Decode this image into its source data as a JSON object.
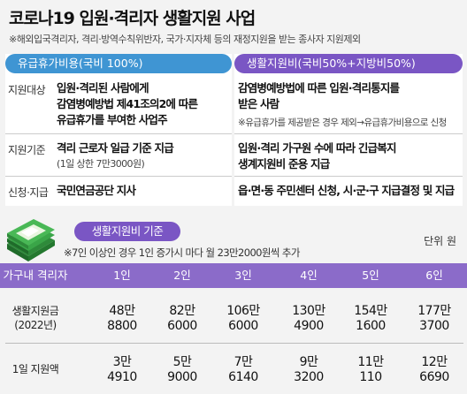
{
  "title": "코로나19 입원·격리자 생활지원 사업",
  "note": "※해외입국격리자, 격리·방역수칙위반자, 국가·지자체 등의 재정지원을 받는 종사자 지원제외",
  "left_panel": {
    "header": "유급휴가비용(국비 100%)",
    "rows": [
      {
        "label": "지원대상",
        "lines": [
          "입원·격리된 사람에게",
          "감염병예방법 제41조의2에 따른",
          "유급휴가를 부여한 사업주"
        ]
      },
      {
        "label": "지원기준",
        "line1": "격리 근로자 일급 기준 지급",
        "line2": "(1일 상한 7만3000원)"
      },
      {
        "label": "신청·지급",
        "line1": "국민연금공단 지사"
      }
    ]
  },
  "right_panel": {
    "header": "생활지원비(국비50%+지방비50%)",
    "row1": {
      "lines": [
        "감염병예방법에 따른 입원·격리통지를",
        "받은 사람"
      ],
      "sub": "※유급휴가를 제공받은 경우 제외→유급휴가비용으로 신청"
    },
    "row2": {
      "lines": [
        "입원·격리 가구원 수에 따라 긴급복지",
        "생계지원비 준용 지급"
      ]
    },
    "row3": {
      "line1": "읍·면·동 주민센터 신청, 시·군·구 지급결정 및 지급"
    }
  },
  "support": {
    "tag": "생활지원비 기준",
    "unit": "단위 원",
    "note": "※7인 이상인 경우 1인 증가시 마다 월 23만2000원씩 추가"
  },
  "table": {
    "row_header": "가구내 격리자",
    "columns": [
      "1인",
      "2인",
      "3인",
      "4인",
      "5인",
      "6인"
    ],
    "rows": [
      {
        "label1": "생활지원금",
        "label2": "(2022년)",
        "values": [
          [
            "48만",
            "8800"
          ],
          [
            "82만",
            "6000"
          ],
          [
            "106만",
            "6000"
          ],
          [
            "130만",
            "4900"
          ],
          [
            "154만",
            "1600"
          ],
          [
            "177만",
            "3700"
          ]
        ]
      },
      {
        "label1": "1일 지원액",
        "values": [
          [
            "3만",
            "4910"
          ],
          [
            "5만",
            "9000"
          ],
          [
            "7만",
            "6140"
          ],
          [
            "9만",
            "3200"
          ],
          [
            "11만",
            "110"
          ],
          [
            "12만",
            "6690"
          ]
        ]
      }
    ]
  },
  "colors": {
    "blue": "#3f95d3",
    "purple": "#7a56c4",
    "table_bar": "#8b6bc9"
  },
  "icons": [
    "money-stack-icon"
  ]
}
